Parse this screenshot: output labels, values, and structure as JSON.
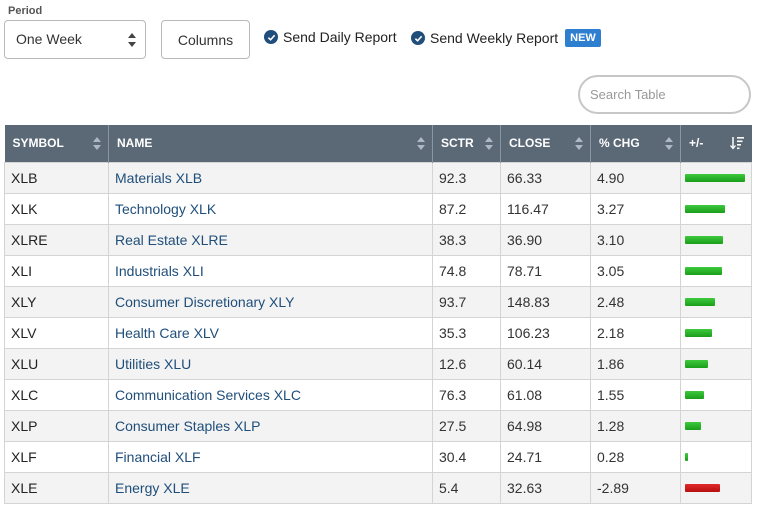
{
  "controls": {
    "period_label": "Period",
    "period_value": "One Week",
    "columns_label": "Columns",
    "send_daily_label": "Send Daily Report",
    "send_weekly_label": "Send Weekly Report",
    "new_badge": "NEW",
    "search_placeholder": "Search Table"
  },
  "table": {
    "headers": [
      "SYMBOL",
      "NAME",
      "SCTR",
      "CLOSE",
      "% CHG",
      "+/-"
    ],
    "rows": [
      {
        "symbol": "XLB",
        "name": "Materials XLB",
        "sctr": "92.3",
        "close": "66.33",
        "chg": "4.90"
      },
      {
        "symbol": "XLK",
        "name": "Technology XLK",
        "sctr": "87.2",
        "close": "116.47",
        "chg": "3.27"
      },
      {
        "symbol": "XLRE",
        "name": "Real Estate XLRE",
        "sctr": "38.3",
        "close": "36.90",
        "chg": "3.10"
      },
      {
        "symbol": "XLI",
        "name": "Industrials XLI",
        "sctr": "74.8",
        "close": "78.71",
        "chg": "3.05"
      },
      {
        "symbol": "XLY",
        "name": "Consumer Discretionary XLY",
        "sctr": "93.7",
        "close": "148.83",
        "chg": "2.48"
      },
      {
        "symbol": "XLV",
        "name": "Health Care XLV",
        "sctr": "35.3",
        "close": "106.23",
        "chg": "2.18"
      },
      {
        "symbol": "XLU",
        "name": "Utilities XLU",
        "sctr": "12.6",
        "close": "60.14",
        "chg": "1.86"
      },
      {
        "symbol": "XLC",
        "name": "Communication Services XLC",
        "sctr": "76.3",
        "close": "61.08",
        "chg": "1.55"
      },
      {
        "symbol": "XLP",
        "name": "Consumer Staples XLP",
        "sctr": "27.5",
        "close": "64.98",
        "chg": "1.28"
      },
      {
        "symbol": "XLF",
        "name": "Financial XLF",
        "sctr": "30.4",
        "close": "24.71",
        "chg": "0.28"
      },
      {
        "symbol": "XLE",
        "name": "Energy XLE",
        "sctr": "5.4",
        "close": "32.63",
        "chg": "-2.89"
      }
    ]
  },
  "colors": {
    "header_bg": "#5b6977",
    "link": "#1f4e7a",
    "bar_positive": "#22b022",
    "bar_negative": "#cc1414",
    "new_badge": "#2f7fd0"
  }
}
